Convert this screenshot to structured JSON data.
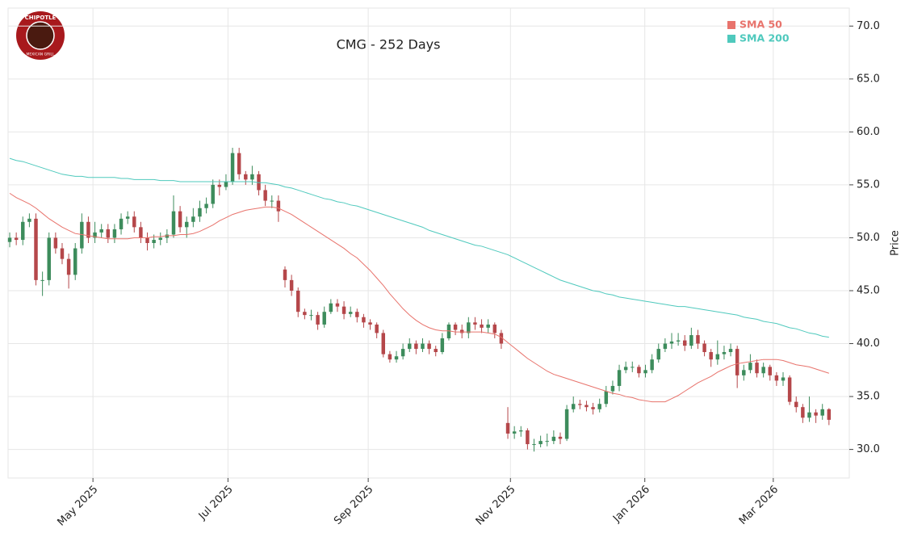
{
  "logo": {
    "top": "CHIPOTLE",
    "bottom": "MEXICAN GRILL"
  },
  "chart_data": {
    "type": "candlestick",
    "title": "CMG - 252 Days",
    "y_label": "Price",
    "grid": true,
    "legend": "upper right",
    "up_color": "#3d8c5c",
    "down_color": "#b5474a",
    "xlim": [
      -0.25,
      128.1
    ],
    "xticks": [
      {
        "value": 12.7,
        "label": "May 2025"
      },
      {
        "value": 33.3,
        "label": "Jul 2025"
      },
      {
        "value": 54.7,
        "label": "Sep 2025"
      },
      {
        "value": 76.4,
        "label": "Nov 2025"
      },
      {
        "value": 96.9,
        "label": "Jan 2026"
      },
      {
        "value": 116.5,
        "label": "Mar 2026"
      }
    ],
    "ylim": [
      27.3,
      71.7
    ],
    "yticks": [
      {
        "value": 30,
        "label": "30.0"
      },
      {
        "value": 35,
        "label": "35.0"
      },
      {
        "value": 40,
        "label": "40.0"
      },
      {
        "value": 45,
        "label": "45.0"
      },
      {
        "value": 50,
        "label": "50.0"
      },
      {
        "value": 55,
        "label": "55.0"
      },
      {
        "value": 60,
        "label": "60.0"
      },
      {
        "value": 65,
        "label": "65.0"
      },
      {
        "value": 70,
        "label": "70.0"
      }
    ],
    "open": [
      49.6,
      50.0,
      49.8,
      51.5,
      51.8,
      46.0,
      46.0,
      50.0,
      49.0,
      48.0,
      46.5,
      49.0,
      51.5,
      50.0,
      50.5,
      50.8,
      50.0,
      50.8,
      51.8,
      52.0,
      51.0,
      50.0,
      49.5,
      49.8,
      50.0,
      50.3,
      52.5,
      51.0,
      51.5,
      52.0,
      52.8,
      53.2,
      55.0,
      54.8,
      55.3,
      58.0,
      56.0,
      55.5,
      56.0,
      54.5,
      53.5,
      53.5,
      47.0,
      46.0,
      45.0,
      43.0,
      42.7,
      42.7,
      41.8,
      43.0,
      43.8,
      43.5,
      42.8,
      43.0,
      42.5,
      42.0,
      41.8,
      41.0,
      39.0,
      38.5,
      38.8,
      39.5,
      40.0,
      39.5,
      40.0,
      39.5,
      39.2,
      40.5,
      41.8,
      41.3,
      41.0,
      42.0,
      41.8,
      41.5,
      41.8,
      41.0,
      32.5,
      31.5,
      31.7,
      31.8,
      30.5,
      30.5,
      30.8,
      30.8,
      31.2,
      31.0,
      33.8,
      34.3,
      34.2,
      34.0,
      33.8,
      34.3,
      35.5,
      36.0,
      37.5,
      37.8,
      37.8,
      37.2,
      37.5,
      38.5,
      39.5,
      40.0,
      40.2,
      40.3,
      39.8,
      40.8,
      40.0,
      39.2,
      38.5,
      39.0,
      39.2,
      39.5,
      37.0,
      37.5,
      38.2,
      37.2,
      37.8,
      37.0,
      36.5,
      36.8,
      34.5,
      34.0,
      33.0,
      33.5,
      33.2,
      33.8
    ],
    "high": [
      50.5,
      50.5,
      52.0,
      52.3,
      52.3,
      46.8,
      50.5,
      50.5,
      49.5,
      48.5,
      49.5,
      52.3,
      52.0,
      51.5,
      51.3,
      51.3,
      51.3,
      52.3,
      52.5,
      52.5,
      51.5,
      50.5,
      50.3,
      50.5,
      50.8,
      54.0,
      53.0,
      52.0,
      52.8,
      53.5,
      53.8,
      55.5,
      55.5,
      56.0,
      58.5,
      58.5,
      56.3,
      56.8,
      56.3,
      55.0,
      54.0,
      54.0,
      47.3,
      46.5,
      45.3,
      43.3,
      43.2,
      43.0,
      43.5,
      44.2,
      44.2,
      44.0,
      43.5,
      43.3,
      42.8,
      42.3,
      42.0,
      41.3,
      39.3,
      39.3,
      40.0,
      40.5,
      40.3,
      40.5,
      40.3,
      39.8,
      41.0,
      42.0,
      42.0,
      41.8,
      42.5,
      42.5,
      42.3,
      42.3,
      42.0,
      41.3,
      34.0,
      32.2,
      32.2,
      32.0,
      31.0,
      31.3,
      31.5,
      31.8,
      31.6,
      34.2,
      35.0,
      34.7,
      34.6,
      34.4,
      34.8,
      36.0,
      36.5,
      38.0,
      38.3,
      38.3,
      38.0,
      38.0,
      39.0,
      40.0,
      40.5,
      41.0,
      41.0,
      40.8,
      41.5,
      41.3,
      40.3,
      39.5,
      40.3,
      39.8,
      40.0,
      39.8,
      38.0,
      39.0,
      38.5,
      38.2,
      38.0,
      37.3,
      37.3,
      37.0,
      35.0,
      34.3,
      35.0,
      33.8,
      34.3,
      33.9
    ],
    "low": [
      49.1,
      49.3,
      49.3,
      51.0,
      45.5,
      44.5,
      45.5,
      48.5,
      47.5,
      45.2,
      46.0,
      48.5,
      49.5,
      49.5,
      50.0,
      49.5,
      49.5,
      50.3,
      51.3,
      50.5,
      49.5,
      48.8,
      49.0,
      49.3,
      49.5,
      50.0,
      50.5,
      50.0,
      51.0,
      51.5,
      52.3,
      52.8,
      54.0,
      54.5,
      55.0,
      55.5,
      55.0,
      55.0,
      54.0,
      53.0,
      52.8,
      51.5,
      45.3,
      44.5,
      42.5,
      42.3,
      42.2,
      41.3,
      41.5,
      42.8,
      43.0,
      42.3,
      42.5,
      42.0,
      41.5,
      41.3,
      40.5,
      38.7,
      38.2,
      38.2,
      38.5,
      39.2,
      39.0,
      39.2,
      39.0,
      38.8,
      39.0,
      40.3,
      40.8,
      40.5,
      40.5,
      41.3,
      41.0,
      41.0,
      40.5,
      39.5,
      31.0,
      31.0,
      31.2,
      30.0,
      29.8,
      30.2,
      30.3,
      30.5,
      30.5,
      30.8,
      33.5,
      33.8,
      33.6,
      33.3,
      33.5,
      34.0,
      35.2,
      35.5,
      37.2,
      37.3,
      36.8,
      36.8,
      37.2,
      38.2,
      39.2,
      39.5,
      39.8,
      39.3,
      39.5,
      39.5,
      38.8,
      37.8,
      38.0,
      38.5,
      38.8,
      35.8,
      36.5,
      37.2,
      36.8,
      36.8,
      36.5,
      36.0,
      36.0,
      34.2,
      33.5,
      32.5,
      32.6,
      32.5,
      32.8,
      32.3
    ],
    "close": [
      50.0,
      49.8,
      51.5,
      51.8,
      46.0,
      46.0,
      50.0,
      49.0,
      48.0,
      46.5,
      49.0,
      51.5,
      50.0,
      50.5,
      50.8,
      50.0,
      50.8,
      51.8,
      52.0,
      51.0,
      50.0,
      49.5,
      49.8,
      50.0,
      50.3,
      52.5,
      51.0,
      51.5,
      52.0,
      52.8,
      53.2,
      55.0,
      54.8,
      55.3,
      58.0,
      56.0,
      55.5,
      56.0,
      54.5,
      53.5,
      53.5,
      52.5,
      46.0,
      45.0,
      43.0,
      42.7,
      42.7,
      41.8,
      43.0,
      43.8,
      43.5,
      42.8,
      43.0,
      42.5,
      42.0,
      41.8,
      41.0,
      39.0,
      38.5,
      38.8,
      39.5,
      40.0,
      39.5,
      40.0,
      39.5,
      39.2,
      40.5,
      41.8,
      41.3,
      41.0,
      42.0,
      41.8,
      41.5,
      41.8,
      41.0,
      40.0,
      31.5,
      31.7,
      31.8,
      30.5,
      30.5,
      30.8,
      30.8,
      31.2,
      31.0,
      33.8,
      34.3,
      34.2,
      34.0,
      33.8,
      34.3,
      35.5,
      36.0,
      37.5,
      37.8,
      37.8,
      37.2,
      37.5,
      38.5,
      39.5,
      40.0,
      40.2,
      40.3,
      39.8,
      40.8,
      40.0,
      39.2,
      38.5,
      39.0,
      39.2,
      39.5,
      37.0,
      37.5,
      38.2,
      37.2,
      37.8,
      37.0,
      36.5,
      36.8,
      34.5,
      34.0,
      33.0,
      33.5,
      33.2,
      33.8,
      32.8
    ],
    "series": [
      {
        "name": "SMA 50",
        "color": "#e8736c",
        "values": [
          54.2,
          53.8,
          53.5,
          53.2,
          52.8,
          52.3,
          51.8,
          51.4,
          51.0,
          50.7,
          50.4,
          50.3,
          50.2,
          50.1,
          50.0,
          49.9,
          49.9,
          49.9,
          49.9,
          50.0,
          50.0,
          50.0,
          50.1,
          50.1,
          50.2,
          50.2,
          50.3,
          50.3,
          50.4,
          50.6,
          50.9,
          51.2,
          51.6,
          51.9,
          52.2,
          52.4,
          52.6,
          52.7,
          52.8,
          52.9,
          52.9,
          52.8,
          52.5,
          52.2,
          51.8,
          51.4,
          51.0,
          50.6,
          50.2,
          49.8,
          49.4,
          49.0,
          48.5,
          48.1,
          47.5,
          46.9,
          46.2,
          45.5,
          44.7,
          44.0,
          43.3,
          42.7,
          42.2,
          41.8,
          41.5,
          41.3,
          41.2,
          41.2,
          41.1,
          41.1,
          41.1,
          41.1,
          41.1,
          41.0,
          40.9,
          40.6,
          40.1,
          39.6,
          39.1,
          38.6,
          38.2,
          37.8,
          37.4,
          37.1,
          36.9,
          36.7,
          36.5,
          36.3,
          36.1,
          35.9,
          35.7,
          35.5,
          35.3,
          35.2,
          35.0,
          34.9,
          34.7,
          34.6,
          34.5,
          34.5,
          34.5,
          34.8,
          35.1,
          35.5,
          35.9,
          36.3,
          36.6,
          36.9,
          37.3,
          37.6,
          37.9,
          38.1,
          38.2,
          38.3,
          38.4,
          38.5,
          38.5,
          38.5,
          38.4,
          38.2,
          38.0,
          37.9,
          37.8,
          37.6,
          37.4,
          37.2
        ]
      },
      {
        "name": "SMA 200",
        "color": "#4fc9bd",
        "values": [
          57.5,
          57.3,
          57.2,
          57.0,
          56.8,
          56.6,
          56.4,
          56.2,
          56.0,
          55.9,
          55.8,
          55.8,
          55.7,
          55.7,
          55.7,
          55.7,
          55.7,
          55.6,
          55.6,
          55.5,
          55.5,
          55.5,
          55.5,
          55.4,
          55.4,
          55.4,
          55.3,
          55.3,
          55.3,
          55.3,
          55.3,
          55.3,
          55.3,
          55.3,
          55.3,
          55.3,
          55.3,
          55.3,
          55.2,
          55.2,
          55.1,
          55.0,
          54.8,
          54.7,
          54.5,
          54.3,
          54.1,
          53.9,
          53.7,
          53.6,
          53.4,
          53.3,
          53.1,
          53.0,
          52.8,
          52.6,
          52.4,
          52.2,
          52.0,
          51.8,
          51.6,
          51.4,
          51.2,
          51.0,
          50.7,
          50.5,
          50.3,
          50.1,
          49.9,
          49.7,
          49.5,
          49.3,
          49.2,
          49.0,
          48.8,
          48.6,
          48.4,
          48.1,
          47.8,
          47.5,
          47.2,
          46.9,
          46.6,
          46.3,
          46.0,
          45.8,
          45.6,
          45.4,
          45.2,
          45.0,
          44.9,
          44.7,
          44.6,
          44.4,
          44.3,
          44.2,
          44.1,
          44.0,
          43.9,
          43.8,
          43.7,
          43.6,
          43.5,
          43.5,
          43.4,
          43.3,
          43.2,
          43.1,
          43.0,
          42.9,
          42.8,
          42.7,
          42.5,
          42.4,
          42.3,
          42.1,
          42.0,
          41.9,
          41.7,
          41.5,
          41.4,
          41.2,
          41.0,
          40.9,
          40.7,
          40.6
        ]
      }
    ]
  }
}
